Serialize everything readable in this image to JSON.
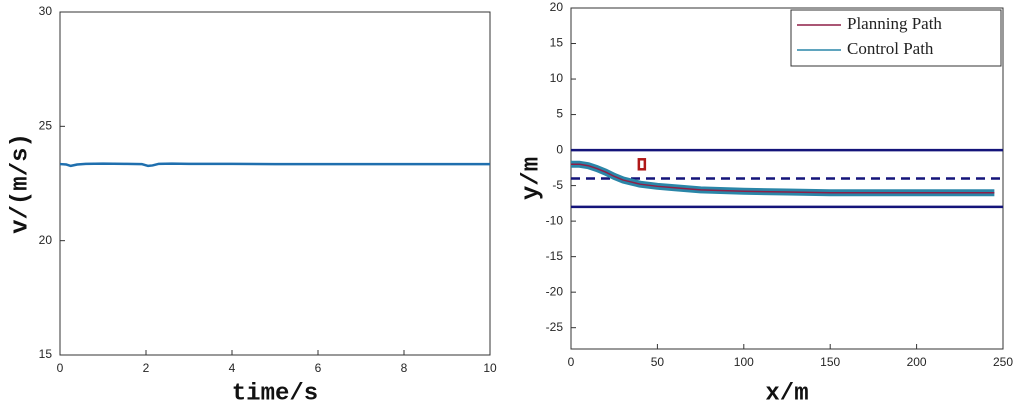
{
  "chart_data": [
    {
      "type": "line",
      "x_label": "time/s",
      "y_label": "v/(m/s)",
      "xlim": [
        0,
        10
      ],
      "ylim": [
        15,
        30
      ],
      "xticks": [
        0,
        2,
        4,
        6,
        8,
        10
      ],
      "yticks": [
        15,
        20,
        25,
        30
      ],
      "x": [
        0,
        0.15,
        0.25,
        0.4,
        0.6,
        1,
        1.5,
        1.9,
        2.05,
        2.15,
        2.3,
        2.6,
        3,
        4,
        5,
        6,
        7,
        8,
        9,
        10
      ],
      "series": [
        {
          "color": "#1f6fae",
          "values": [
            23.35,
            23.33,
            23.27,
            23.33,
            23.36,
            23.37,
            23.36,
            23.35,
            23.27,
            23.29,
            23.36,
            23.37,
            23.36,
            23.36,
            23.35,
            23.35,
            23.35,
            23.35,
            23.35,
            23.35
          ]
        }
      ]
    },
    {
      "type": "line",
      "x_label": "x/m",
      "y_label": "y/m",
      "xlim": [
        0,
        250
      ],
      "ylim": [
        -28,
        20
      ],
      "xticks": [
        0,
        50,
        100,
        150,
        200,
        250
      ],
      "yticks": [
        -25,
        -20,
        -15,
        -10,
        -5,
        0,
        5,
        10,
        15,
        20
      ],
      "hlines": [
        {
          "value": 0,
          "style": "solid",
          "color": "#14147a"
        },
        {
          "value": -4,
          "style": "dashed",
          "color": "#14147a"
        },
        {
          "value": -8,
          "style": "solid",
          "color": "#14147a"
        }
      ],
      "markers": [
        {
          "x": 41,
          "y": -2,
          "color": "#b01818"
        }
      ],
      "legend": "upper right",
      "series": [
        {
          "name": "Control Path",
          "color": "#2a86a8",
          "width": 7,
          "x": [
            0,
            5,
            10,
            15,
            20,
            25,
            30,
            35,
            40,
            50,
            60,
            75,
            100,
            125,
            150,
            200,
            245
          ],
          "values": [
            -2,
            -2,
            -2.2,
            -2.6,
            -3.1,
            -3.7,
            -4.2,
            -4.5,
            -4.8,
            -5.1,
            -5.3,
            -5.6,
            -5.8,
            -5.9,
            -6,
            -6,
            -6
          ]
        },
        {
          "name": "Planning Path",
          "color": "#8e1f47",
          "width": 1.5,
          "x": [
            0,
            5,
            10,
            15,
            20,
            25,
            30,
            35,
            40,
            50,
            60,
            75,
            100,
            125,
            150,
            200,
            245
          ],
          "values": [
            -2,
            -2,
            -2.2,
            -2.6,
            -3.1,
            -3.7,
            -4.2,
            -4.5,
            -4.8,
            -5.1,
            -5.3,
            -5.6,
            -5.8,
            -5.9,
            -6,
            -6,
            -6
          ]
        }
      ]
    }
  ]
}
